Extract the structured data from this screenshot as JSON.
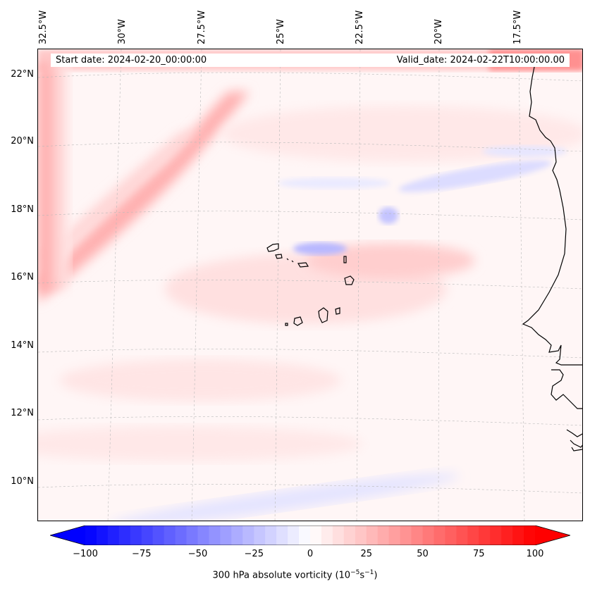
{
  "map": {
    "start_date_text": "Start date: 2024-02-20_00:00:00",
    "valid_date_text": "Valid_date: 2024-02-22T10:00:00.00",
    "longitude_labels": [
      "32.5°W",
      "30°W",
      "27.5°W",
      "25°W",
      "22.5°W",
      "20°W",
      "17.5°W"
    ],
    "latitude_labels": [
      "22°N",
      "20°N",
      "18°N",
      "16°N",
      "14°N",
      "12°N",
      "10°N"
    ],
    "field": "300 hPa absolute vorticity",
    "coastline_color": "#000000",
    "features": [
      "Cape Verde islands",
      "West African coastline (Senegal, Gambia, Guinea-Bissau)"
    ]
  },
  "colorbar": {
    "ticks": [
      "−100",
      "−75",
      "−50",
      "−25",
      "0",
      "25",
      "50",
      "75",
      "100"
    ],
    "title_prefix": "300 hPa absolute vorticity (10",
    "title_exp1": "−5",
    "title_mid": "s",
    "title_exp2": "−1",
    "title_suffix": ")",
    "cmap": "bwr",
    "negative_color": "#0000ff",
    "zero_color": "#ffffff",
    "positive_color": "#ff0000",
    "extend": "both"
  }
}
